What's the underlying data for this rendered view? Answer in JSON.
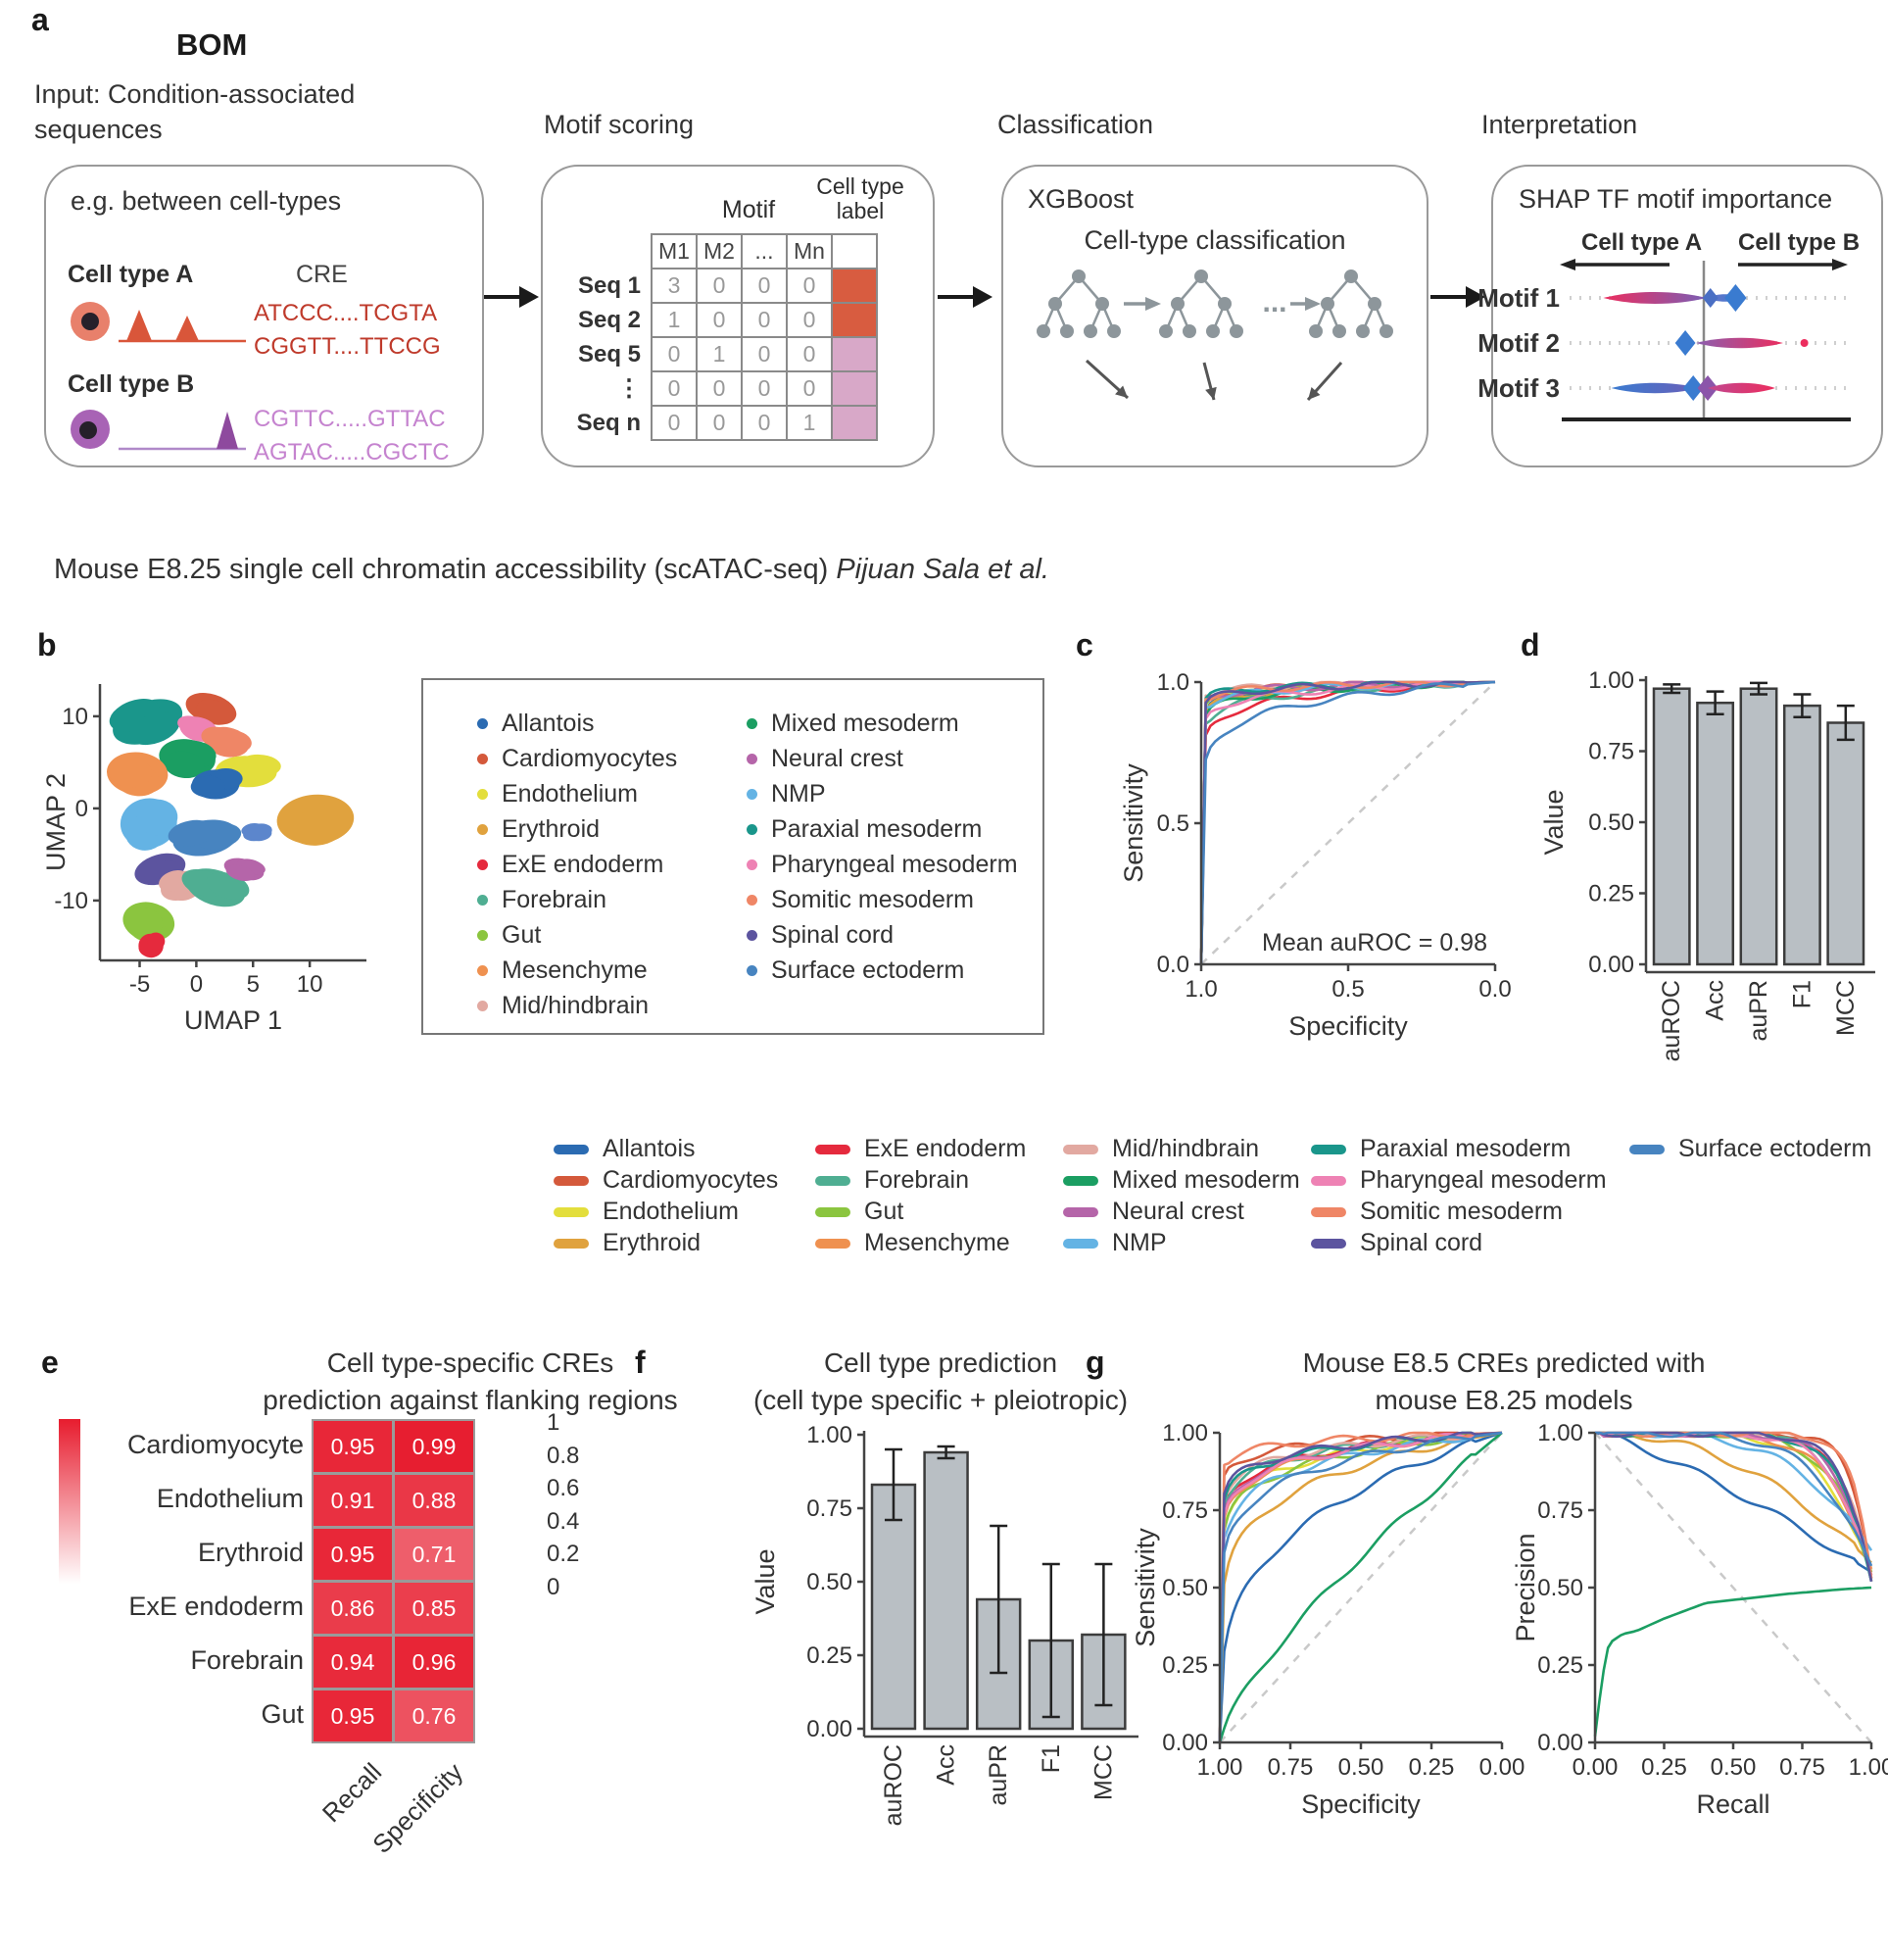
{
  "panel_a": {
    "label": "a",
    "title": "BOM",
    "input_heading": "Input: Condition-associated sequences",
    "steps": [
      "Motif scoring",
      "Classification",
      "Interpretation"
    ],
    "box1": {
      "heading": "e.g. between cell-types",
      "cell_a": "Cell type A",
      "cell_b": "Cell type B",
      "cre_header": "CRE",
      "cre_a": [
        "ATCCC....TCGTA",
        "CGGTT....TTCCG"
      ],
      "cre_b": [
        "CGTTC.....GTTAC",
        "AGTAC.....CGCTC"
      ],
      "cell_a_color": "#e8806b",
      "cell_b_color": "#a863b5",
      "track_a_color": "#d9563a",
      "track_b_color": "#8e4a9e",
      "cre_a_color": "#bf3a2b",
      "cre_b_color": "#c583cf"
    },
    "box2": {
      "motif_header": "Motif",
      "label_header": "Cell type label",
      "columns": [
        "M1",
        "M2",
        "...",
        "Mn"
      ],
      "rows": [
        {
          "label": "Seq 1",
          "values": [
            "3",
            "0",
            "0",
            "0"
          ],
          "tag": "#d85c40"
        },
        {
          "label": "Seq 2",
          "values": [
            "1",
            "0",
            "0",
            "0"
          ],
          "tag": "#d85c40"
        },
        {
          "label": "Seq 5",
          "values": [
            "0",
            "1",
            "0",
            "0"
          ],
          "tag": "#d8a8c8"
        },
        {
          "label": "⋮",
          "values": [
            "0",
            "0",
            "0",
            "0"
          ],
          "tag": "#d8a8c8"
        },
        {
          "label": "Seq n",
          "values": [
            "0",
            "0",
            "0",
            "1"
          ],
          "tag": "#d8a8c8"
        }
      ]
    },
    "box3": {
      "heading": "XGBoost",
      "subheading": "Cell-type classification"
    },
    "box4": {
      "heading": "SHAP TF motif importance",
      "col_a": "Cell type A",
      "col_b": "Cell type B",
      "rows": [
        {
          "label": "Motif 1",
          "elements": [
            {
              "t": "bar",
              "x0": -0.76,
              "x1": 0.02,
              "c0": "#ec2d5e",
              "c1": "#7a5fb5",
              "h": 8
            },
            {
              "t": "bar",
              "x0": 0.02,
              "x1": 0.3,
              "c0": "#6b74c8",
              "c1": "#3a7bd0",
              "h": 5
            },
            {
              "t": "d",
              "x": 0.05,
              "c": "#4a6fc4",
              "s": 10
            },
            {
              "t": "d",
              "x": 0.24,
              "c": "#3a7bd0",
              "s": 14
            }
          ]
        },
        {
          "label": "Motif 2",
          "elements": [
            {
              "t": "d",
              "x": -0.14,
              "c": "#3a7bd0",
              "s": 13
            },
            {
              "t": "bar",
              "x0": -0.06,
              "x1": 0.6,
              "c0": "#8a5fb0",
              "c1": "#ec2d5e",
              "h": 7
            },
            {
              "t": "dot",
              "x": 0.76,
              "c": "#ec2d5e"
            }
          ]
        },
        {
          "label": "Motif 3",
          "elements": [
            {
              "t": "bar",
              "x0": -0.7,
              "x1": -0.04,
              "c0": "#3a7bd0",
              "c1": "#6b5fb8",
              "h": 7
            },
            {
              "t": "d",
              "x": -0.08,
              "c": "#3a7bd0",
              "s": 13
            },
            {
              "t": "d",
              "x": 0.03,
              "c": "#8b55aa",
              "s": 13
            },
            {
              "t": "bar",
              "x0": 0.03,
              "x1": 0.54,
              "c0": "#c04890",
              "c1": "#ec2d5e",
              "h": 7
            }
          ]
        }
      ]
    }
  },
  "caption": {
    "text": "Mouse E8.25 single cell chromatin accessibility (scATAC-seq) ",
    "source": "Pijuan Sala et al."
  },
  "cell_types": [
    {
      "name": "Allantois",
      "color": "#2b6bb2"
    },
    {
      "name": "Cardiomyocytes",
      "color": "#d4593b"
    },
    {
      "name": "Endothelium",
      "color": "#e3de3c"
    },
    {
      "name": "Erythroid",
      "color": "#e0a23e"
    },
    {
      "name": "ExE endoderm",
      "color": "#e52a3d"
    },
    {
      "name": "Forebrain",
      "color": "#4fae92"
    },
    {
      "name": "Gut",
      "color": "#8bc53f"
    },
    {
      "name": "Mesenchyme",
      "color": "#ef9150"
    },
    {
      "name": "Mid/hindbrain",
      "color": "#e2a9a1"
    },
    {
      "name": "Mixed mesoderm",
      "color": "#1b9e62"
    },
    {
      "name": "Neural crest",
      "color": "#b565a9"
    },
    {
      "name": "NMP",
      "color": "#64b3e4"
    },
    {
      "name": "Paraxial mesoderm",
      "color": "#1a968b"
    },
    {
      "name": "Pharyngeal mesoderm",
      "color": "#ee82b4"
    },
    {
      "name": "Somitic mesoderm",
      "color": "#ef8666"
    },
    {
      "name": "Spinal cord",
      "color": "#5c549f"
    },
    {
      "name": "Surface ectoderm",
      "color": "#4784c0"
    }
  ],
  "panel_b": {
    "label": "b"
  },
  "panel_c": {
    "label": "c",
    "annotation": "Mean auROC = 0.98"
  },
  "panel_d": {
    "label": "d"
  },
  "panel_e": {
    "label": "e",
    "title1": "Cell type-specific CREs",
    "title2": "prediction against flanking regions"
  },
  "panel_f": {
    "label": "f",
    "title1": "Cell type prediction",
    "title2": "(cell type specific + pleiotropic)"
  },
  "panel_g": {
    "label": "g",
    "title1": "Mouse E8.5 CREs predicted with",
    "title2": "mouse E8.25 models"
  },
  "chart_data": [
    {
      "id": "umap",
      "type": "scatter",
      "xlabel": "UMAP 1",
      "ylabel": "UMAP 2",
      "xticks": [
        "-5",
        "0",
        "5",
        "10"
      ],
      "xtick_vals": [
        -5,
        0,
        5,
        10
      ],
      "yticks": [
        "10",
        "0",
        "-10"
      ],
      "ytick_vals": [
        10,
        0,
        -10
      ],
      "xlim": [
        -8.5,
        15
      ],
      "ylim": [
        -16.5,
        13.5
      ],
      "clusters": [
        {
          "name": "Paraxial mesoderm",
          "x": -4.3,
          "y": 9.4,
          "rx": 3.2,
          "ry": 2.2,
          "color": "#1a968b"
        },
        {
          "name": "Cardiomyocytes",
          "x": 1.3,
          "y": 10.8,
          "rx": 2.3,
          "ry": 1.6,
          "color": "#d4593b"
        },
        {
          "name": "Pharyngeal mesoderm",
          "x": 0.2,
          "y": 8.6,
          "rx": 1.7,
          "ry": 1.3,
          "color": "#ee82b4"
        },
        {
          "name": "Somitic mesoderm",
          "x": 2.7,
          "y": 7.2,
          "rx": 2.0,
          "ry": 1.6,
          "color": "#ef8666"
        },
        {
          "name": "Mixed mesoderm",
          "x": -0.8,
          "y": 5.5,
          "rx": 2.5,
          "ry": 2.0,
          "color": "#1b9e62"
        },
        {
          "name": "Mesenchyme",
          "x": -5.2,
          "y": 3.8,
          "rx": 2.7,
          "ry": 2.3,
          "color": "#ef9150"
        },
        {
          "name": "Endothelium",
          "x": 4.4,
          "y": 4.0,
          "rx": 2.7,
          "ry": 1.7,
          "color": "#e3de3c"
        },
        {
          "name": "Allantois",
          "x": 1.7,
          "y": 2.6,
          "rx": 2.1,
          "ry": 1.6,
          "color": "#2b6bb2"
        },
        {
          "name": "Erythroid",
          "x": 10.5,
          "y": -1.2,
          "rx": 3.4,
          "ry": 2.7,
          "color": "#e0a23e"
        },
        {
          "name": "NMP",
          "x": -4.2,
          "y": -1.6,
          "rx": 2.5,
          "ry": 2.7,
          "color": "#64b3e4"
        },
        {
          "name": "Surface ectoderm",
          "x": 0.8,
          "y": -3.2,
          "rx": 2.9,
          "ry": 1.9,
          "color": "#4784c0"
        },
        {
          "name": "Allantois",
          "x": 5.4,
          "y": -2.6,
          "rx": 1.3,
          "ry": 0.9,
          "color": "#5c86cc"
        },
        {
          "name": "Spinal cord",
          "x": -3.2,
          "y": -6.6,
          "rx": 2.3,
          "ry": 1.6,
          "color": "#5c549f"
        },
        {
          "name": "Mid/hindbrain",
          "x": -1.3,
          "y": -8.4,
          "rx": 1.9,
          "ry": 1.5,
          "color": "#e2a9a1"
        },
        {
          "name": "Forebrain",
          "x": 1.7,
          "y": -8.6,
          "rx": 2.7,
          "ry": 1.9,
          "color": "#4fae92"
        },
        {
          "name": "Neural crest",
          "x": 4.2,
          "y": -6.6,
          "rx": 1.8,
          "ry": 1.1,
          "color": "#b565a9"
        },
        {
          "name": "Gut",
          "x": -4.2,
          "y": -12.3,
          "rx": 2.3,
          "ry": 2.1,
          "color": "#8bc53f"
        },
        {
          "name": "ExE endoderm",
          "x": -4.0,
          "y": -14.9,
          "rx": 1.1,
          "ry": 1.3,
          "color": "#e52a3d"
        }
      ]
    },
    {
      "id": "roc_c",
      "type": "line",
      "xlabel": "Specificity",
      "ylabel": "Sensitivity",
      "x_reversed": true,
      "xticks": [
        "1.0",
        "0.5",
        "0.0"
      ],
      "yticks": [
        "0.0",
        "0.5",
        "1.0"
      ],
      "annotation": "Mean auROC = 0.98",
      "series": [
        {
          "name": "Allantois",
          "p": 40
        },
        {
          "name": "Cardiomyocytes",
          "p": 65
        },
        {
          "name": "Endothelium",
          "p": 45
        },
        {
          "name": "Erythroid",
          "p": 38
        },
        {
          "name": "ExE endoderm",
          "p": 20
        },
        {
          "name": "Forebrain",
          "p": 26
        },
        {
          "name": "Gut",
          "p": 50
        },
        {
          "name": "Mesenchyme",
          "p": 58
        },
        {
          "name": "Mid/hindbrain",
          "p": 85
        },
        {
          "name": "Mixed mesoderm",
          "p": 33
        },
        {
          "name": "Neural crest",
          "p": 60
        },
        {
          "name": "NMP",
          "p": 44
        },
        {
          "name": "Paraxial mesoderm",
          "p": 72
        },
        {
          "name": "Pharyngeal mesoderm",
          "p": 30
        },
        {
          "name": "Somitic mesoderm",
          "p": 66
        },
        {
          "name": "Spinal cord",
          "p": 55
        },
        {
          "name": "Surface ectoderm",
          "p": 13
        }
      ]
    },
    {
      "id": "bars_d",
      "type": "bar",
      "categories": [
        "auROC",
        "Acc",
        "auPR",
        "F1",
        "MCC"
      ],
      "values": [
        0.97,
        0.92,
        0.97,
        0.91,
        0.85
      ],
      "errors": [
        0.015,
        0.04,
        0.02,
        0.04,
        0.06
      ],
      "ylabel": "Value",
      "yticks": [
        "0.00",
        "0.25",
        "0.50",
        "0.75",
        "1.00"
      ],
      "ylim": [
        0,
        1
      ],
      "bar_color": "#b9bfc4"
    },
    {
      "id": "heat_e",
      "type": "heatmap",
      "columns": [
        "Recall",
        "Specificity"
      ],
      "rows": [
        "Cardiomyocyte",
        "Endothelium",
        "Erythroid",
        "ExE endoderm",
        "Forebrain",
        "Gut"
      ],
      "values": [
        [
          0.95,
          0.99
        ],
        [
          0.91,
          0.88
        ],
        [
          0.95,
          0.71
        ],
        [
          0.86,
          0.85
        ],
        [
          0.94,
          0.96
        ],
        [
          0.95,
          0.76
        ]
      ],
      "colorbar_ticks": [
        "1",
        "0.8",
        "0.6",
        "0.4",
        "0.2",
        "0"
      ],
      "max_color": "#e71c2e"
    },
    {
      "id": "bars_f",
      "type": "bar",
      "categories": [
        "auROC",
        "Acc",
        "auPR",
        "F1",
        "MCC"
      ],
      "values": [
        0.83,
        0.94,
        0.44,
        0.3,
        0.32
      ],
      "errors": [
        0.12,
        0.02,
        0.25,
        0.26,
        0.24
      ],
      "ylabel": "Value",
      "yticks": [
        "0.00",
        "0.25",
        "0.50",
        "0.75",
        "1.00"
      ],
      "ylim": [
        0,
        1
      ],
      "bar_color": "#b9bfc4"
    },
    {
      "id": "roc_g",
      "type": "line",
      "xlabel": "Specificity",
      "ylabel": "Sensitivity",
      "x_reversed": true,
      "xticks": [
        "1.00",
        "0.75",
        "0.50",
        "0.25",
        "0.00"
      ],
      "yticks": [
        "0.00",
        "0.25",
        "0.50",
        "0.75",
        "1.00"
      ],
      "series": [
        {
          "name": "Allantois",
          "p": 3.4
        },
        {
          "name": "Cardiomyocytes",
          "p": 28
        },
        {
          "name": "Endothelium",
          "p": 12
        },
        {
          "name": "Erythroid",
          "p": 6.2
        },
        {
          "name": "ExE endoderm",
          "p": 15
        },
        {
          "name": "Forebrain",
          "p": 16
        },
        {
          "name": "Gut",
          "p": 11
        },
        {
          "name": "Mesenchyme",
          "p": 13
        },
        {
          "name": "Mid/hindbrain",
          "p": 18
        },
        {
          "name": "Mixed mesoderm",
          "p": 1.35
        },
        {
          "name": "Neural crest",
          "p": 14
        },
        {
          "name": "NMP",
          "p": 10
        },
        {
          "name": "Paraxial mesoderm",
          "p": 17
        },
        {
          "name": "Pharyngeal mesoderm",
          "p": 13.5
        },
        {
          "name": "Somitic mesoderm",
          "p": 38
        },
        {
          "name": "Spinal cord",
          "p": 19
        },
        {
          "name": "Surface ectoderm",
          "p": 8.5
        }
      ]
    },
    {
      "id": "pr_g",
      "type": "line",
      "xlabel": "Recall",
      "ylabel": "Precision",
      "xticks": [
        "0.00",
        "0.25",
        "0.50",
        "0.75",
        "1.00"
      ],
      "yticks": [
        "0.00",
        "0.25",
        "0.50",
        "0.75",
        "1.00"
      ],
      "series": [
        {
          "name": "Allantois",
          "q": 1.25,
          "e": 0.55
        },
        {
          "name": "Cardiomyocytes",
          "q": 14,
          "e": 0.52
        },
        {
          "name": "Endothelium",
          "q": 6,
          "e": 0.54
        },
        {
          "name": "Erythroid",
          "q": 2.1,
          "e": 0.58
        },
        {
          "name": "ExE endoderm",
          "q": 9,
          "e": 0.53
        },
        {
          "name": "Forebrain",
          "q": 8,
          "e": 0.52
        },
        {
          "name": "Gut",
          "q": 7,
          "e": 0.55
        },
        {
          "name": "Mesenchyme",
          "q": 6.5,
          "e": 0.56
        },
        {
          "name": "Mid/hindbrain",
          "q": 10,
          "e": 0.53
        },
        {
          "name": "Mixed mesoderm",
          "points": [
            [
              0.005,
              0.02
            ],
            [
              0.02,
              0.18
            ],
            [
              0.05,
              0.32
            ],
            [
              0.1,
              0.35
            ],
            [
              0.15,
              0.36
            ],
            [
              0.25,
              0.4
            ],
            [
              0.4,
              0.45
            ],
            [
              0.5,
              0.46
            ],
            [
              0.7,
              0.48
            ],
            [
              0.9,
              0.495
            ],
            [
              1.0,
              0.5
            ]
          ]
        },
        {
          "name": "Neural crest",
          "q": 8.5,
          "e": 0.54
        },
        {
          "name": "NMP",
          "q": 3.6,
          "e": 0.62
        },
        {
          "name": "Paraxial mesoderm",
          "q": 9,
          "e": 0.52
        },
        {
          "name": "Pharyngeal mesoderm",
          "q": 7.5,
          "e": 0.54
        },
        {
          "name": "Somitic mesoderm",
          "q": 15,
          "e": 0.53
        },
        {
          "name": "Spinal cord",
          "q": 10,
          "e": 0.52
        },
        {
          "name": "Surface ectoderm",
          "q": 5,
          "e": 0.57
        }
      ]
    }
  ]
}
